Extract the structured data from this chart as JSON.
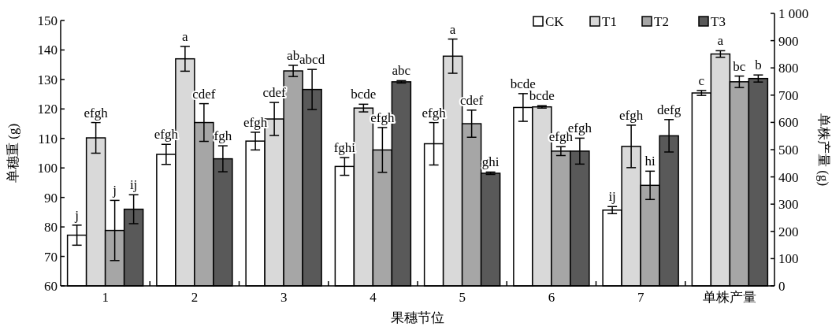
{
  "chart_data": {
    "type": "bar",
    "categories": [
      "1",
      "2",
      "3",
      "4",
      "5",
      "6",
      "7",
      "单株产量"
    ],
    "xlabel": "果穗节位",
    "ylabel": "单穗重 (g)",
    "y2label": "单株产量 (g)",
    "ylim": [
      60,
      150
    ],
    "yticks": [
      60,
      70,
      80,
      90,
      100,
      110,
      120,
      130,
      140,
      150
    ],
    "y2lim": [
      0,
      1000
    ],
    "y2ticks": [
      0,
      100,
      200,
      300,
      400,
      500,
      600,
      700,
      800,
      900,
      {
        "value": 1000,
        "label": "1 000"
      }
    ],
    "legend": "top right",
    "grid": false,
    "series": [
      {
        "name": "CK",
        "color": "#ffffff",
        "values": [
          77.2,
          104.6,
          109.1,
          100.5,
          108.2,
          120.5,
          85.7,
          null
        ],
        "errors": [
          3.4,
          3.4,
          3,
          3,
          7.2,
          4.7,
          1.2,
          null
        ],
        "value_labels": [
          "j",
          "efgh",
          "efgh",
          "fghi",
          "efgh",
          "bcde",
          "ij",
          null
        ]
      },
      {
        "name": "T1",
        "color": "#d9d9d9",
        "values": [
          110.2,
          137,
          116.6,
          120.3,
          137.9,
          120.7,
          107.3,
          null
        ],
        "errors": [
          5.2,
          4.2,
          5.6,
          1.3,
          5.8,
          0.4,
          7.2,
          null
        ],
        "value_labels": [
          "efgh",
          "a",
          "cdef",
          "bcde",
          "a",
          "bcde",
          "efgh",
          null
        ]
      },
      {
        "name": "T2",
        "color": "#a6a6a6",
        "values": [
          78.8,
          115.4,
          132.9,
          106.1,
          115,
          105.7,
          94.1,
          null
        ],
        "errors": [
          10.2,
          6.4,
          1.9,
          7.6,
          4.6,
          1.5,
          4.8,
          null
        ],
        "value_labels": [
          "j",
          "cdef",
          "ab",
          "efgh",
          "cdef",
          "efgh",
          "hi",
          null
        ]
      },
      {
        "name": "T3",
        "color": "#595959",
        "values": [
          86,
          103.1,
          126.6,
          129.2,
          98.2,
          105.7,
          110.9,
          null
        ],
        "errors": [
          4.9,
          4.4,
          6.8,
          0.4,
          0.4,
          4.4,
          5.5,
          null
        ],
        "value_labels": [
          "ij",
          "fgh",
          "abcd",
          "abc",
          "ghi",
          "efgh",
          "defg",
          null
        ]
      },
      {
        "color": "#ffffff",
        "axis": "y2",
        "values": [
          null,
          null,
          null,
          null,
          null,
          null,
          null,
          708
        ],
        "errors": [
          null,
          null,
          null,
          null,
          null,
          null,
          null,
          9
        ],
        "value_labels": [
          null,
          null,
          null,
          null,
          null,
          null,
          null,
          "c"
        ]
      },
      {
        "color": "#d9d9d9",
        "axis": "y2",
        "values": [
          null,
          null,
          null,
          null,
          null,
          null,
          null,
          851
        ],
        "errors": [
          null,
          null,
          null,
          null,
          null,
          null,
          null,
          12
        ],
        "value_labels": [
          null,
          null,
          null,
          null,
          null,
          null,
          null,
          "a"
        ]
      },
      {
        "color": "#a6a6a6",
        "axis": "y2",
        "values": [
          null,
          null,
          null,
          null,
          null,
          null,
          null,
          749
        ],
        "errors": [
          null,
          null,
          null,
          null,
          null,
          null,
          null,
          21
        ],
        "value_labels": [
          null,
          null,
          null,
          null,
          null,
          null,
          null,
          "bc"
        ]
      },
      {
        "color": "#595959",
        "axis": "y2",
        "values": [
          null,
          null,
          null,
          null,
          null,
          null,
          null,
          761
        ],
        "errors": [
          null,
          null,
          null,
          null,
          null,
          null,
          null,
          13
        ],
        "value_labels": [
          null,
          null,
          null,
          null,
          null,
          null,
          null,
          "b"
        ]
      }
    ]
  }
}
